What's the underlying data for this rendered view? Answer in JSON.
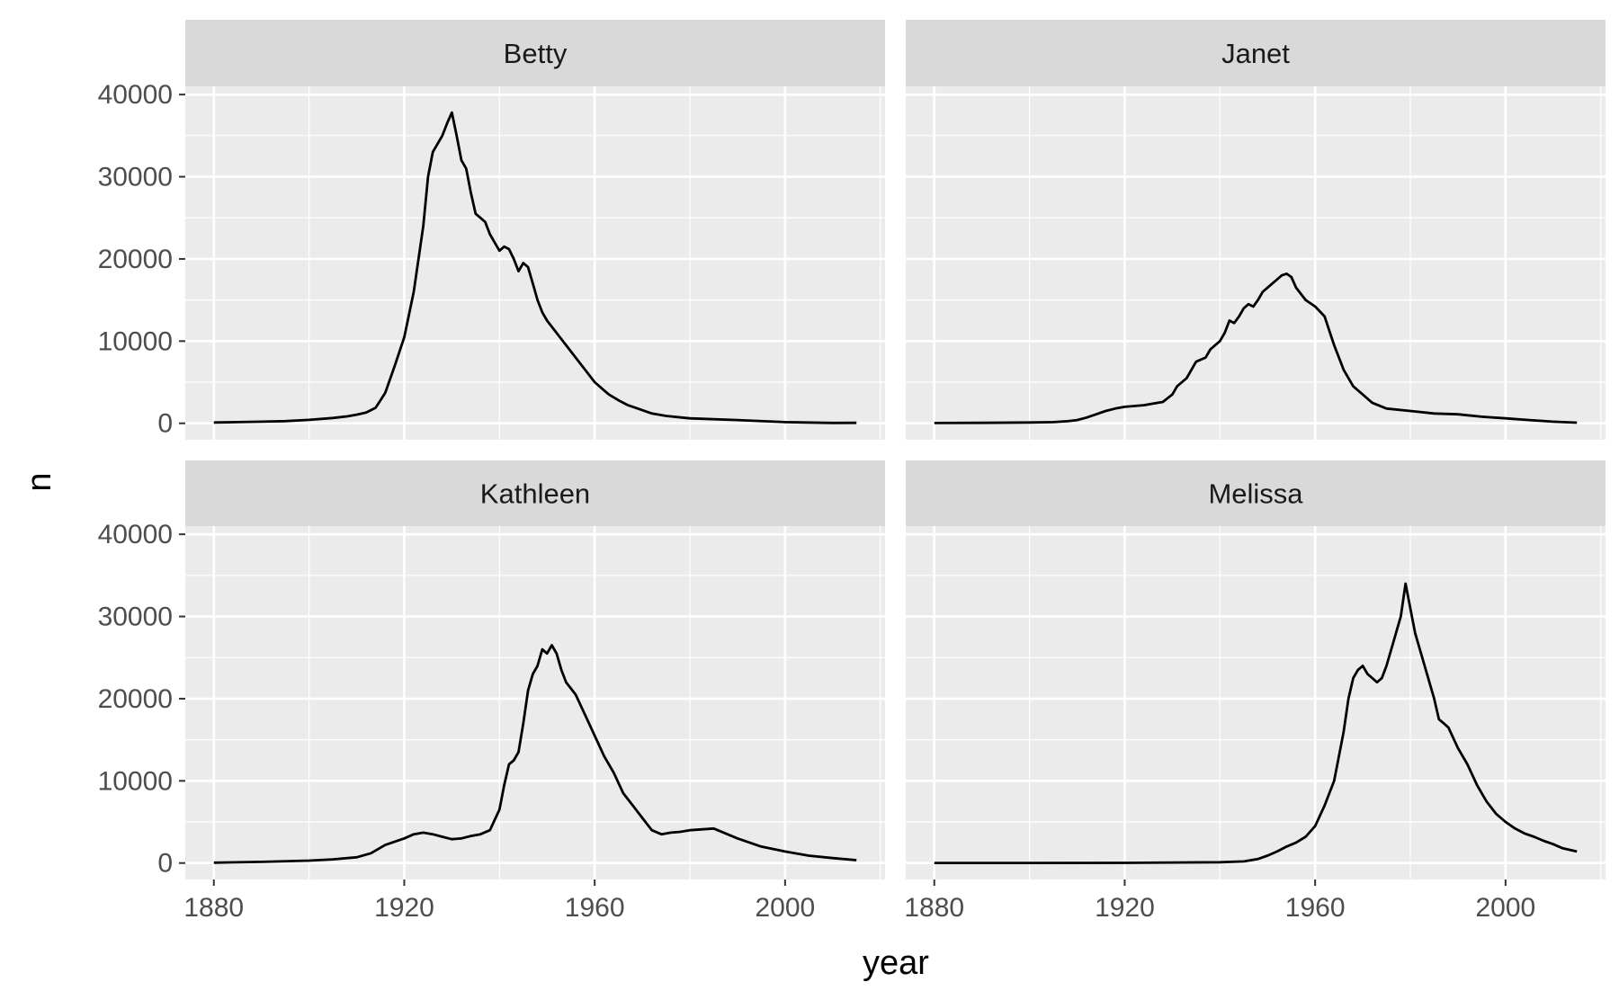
{
  "chart_data": {
    "type": "line",
    "layout": "facet_wrap",
    "title": "",
    "xlabel": "year",
    "ylabel": "n",
    "xlim": [
      1874,
      2021
    ],
    "ylim": [
      -2000,
      40000
    ],
    "x_ticks": [
      1880,
      1920,
      1960,
      2000
    ],
    "y_ticks": [
      0,
      10000,
      20000,
      30000,
      40000
    ],
    "x_tick_labels": [
      "1880",
      "1920",
      "1960",
      "2000"
    ],
    "y_tick_labels": [
      "0",
      "10000",
      "20000",
      "30000",
      "40000"
    ],
    "grid": true,
    "legend": "none",
    "line_color": "#000000",
    "panel_background": "#ebebeb",
    "strip_background": "#d9d9d9",
    "panels": [
      {
        "name": "Betty",
        "x": [
          1880,
          1885,
          1890,
          1895,
          1900,
          1905,
          1908,
          1910,
          1912,
          1914,
          1916,
          1918,
          1920,
          1922,
          1924,
          1925,
          1926,
          1928,
          1929,
          1930,
          1931,
          1932,
          1933,
          1934,
          1935,
          1936,
          1937,
          1938,
          1939,
          1940,
          1941,
          1942,
          1943,
          1944,
          1945,
          1946,
          1947,
          1948,
          1949,
          1950,
          1952,
          1954,
          1956,
          1958,
          1960,
          1962,
          1963,
          1965,
          1967,
          1970,
          1972,
          1975,
          1980,
          1990,
          2000,
          2010,
          2015
        ],
        "y": [
          100,
          150,
          200,
          260,
          420,
          650,
          850,
          1050,
          1300,
          1900,
          3700,
          7000,
          10500,
          16000,
          24000,
          30000,
          33000,
          35000,
          36500,
          37800,
          35000,
          32000,
          31000,
          28000,
          25500,
          25000,
          24500,
          23000,
          22000,
          21000,
          21500,
          21200,
          20000,
          18500,
          19500,
          19000,
          17000,
          15000,
          13500,
          12500,
          11000,
          9500,
          8000,
          6500,
          5000,
          4000,
          3500,
          2800,
          2200,
          1600,
          1200,
          900,
          600,
          400,
          150,
          50,
          60
        ]
      },
      {
        "name": "Janet",
        "x": [
          1880,
          1890,
          1900,
          1905,
          1908,
          1910,
          1912,
          1914,
          1916,
          1918,
          1920,
          1922,
          1924,
          1926,
          1928,
          1930,
          1931,
          1933,
          1934,
          1935,
          1937,
          1938,
          1940,
          1941,
          1942,
          1943,
          1944,
          1945,
          1946,
          1947,
          1948,
          1949,
          1950,
          1951,
          1952,
          1953,
          1954,
          1955,
          1956,
          1958,
          1960,
          1962,
          1964,
          1966,
          1968,
          1970,
          1972,
          1975,
          1980,
          1985,
          1990,
          1995,
          2000,
          2005,
          2010,
          2015
        ],
        "y": [
          30,
          60,
          100,
          150,
          250,
          400,
          700,
          1100,
          1500,
          1800,
          2000,
          2100,
          2200,
          2400,
          2600,
          3500,
          4500,
          5500,
          6500,
          7500,
          8000,
          9000,
          10000,
          11000,
          12500,
          12200,
          13000,
          14000,
          14500,
          14200,
          15000,
          16000,
          16500,
          17000,
          17500,
          18000,
          18200,
          17800,
          16500,
          15000,
          14200,
          13000,
          9500,
          6500,
          4500,
          3500,
          2500,
          1800,
          1500,
          1200,
          1100,
          800,
          600,
          400,
          200,
          80
        ]
      },
      {
        "name": "Kathleen",
        "x": [
          1880,
          1890,
          1900,
          1905,
          1910,
          1913,
          1916,
          1920,
          1922,
          1924,
          1926,
          1928,
          1930,
          1932,
          1934,
          1936,
          1938,
          1940,
          1941,
          1942,
          1943,
          1944,
          1945,
          1946,
          1947,
          1948,
          1949,
          1950,
          1951,
          1952,
          1953,
          1954,
          1956,
          1958,
          1960,
          1962,
          1964,
          1966,
          1968,
          1970,
          1972,
          1974,
          1976,
          1978,
          1980,
          1985,
          1990,
          1995,
          2000,
          2005,
          2010,
          2015
        ],
        "y": [
          50,
          150,
          300,
          450,
          700,
          1200,
          2200,
          3000,
          3500,
          3700,
          3500,
          3200,
          2900,
          3000,
          3300,
          3500,
          4000,
          6500,
          9500,
          12000,
          12500,
          13500,
          17000,
          21000,
          23000,
          24000,
          26000,
          25500,
          26500,
          25500,
          23500,
          22000,
          20500,
          18000,
          15500,
          13000,
          11000,
          8500,
          7000,
          5500,
          4000,
          3500,
          3700,
          3800,
          4000,
          4200,
          3000,
          2000,
          1400,
          900,
          600,
          350
        ]
      },
      {
        "name": "Melissa",
        "x": [
          1880,
          1900,
          1920,
          1940,
          1945,
          1948,
          1950,
          1952,
          1954,
          1956,
          1958,
          1960,
          1962,
          1964,
          1966,
          1967,
          1968,
          1969,
          1970,
          1971,
          1972,
          1973,
          1974,
          1975,
          1976,
          1977,
          1978,
          1979,
          1980,
          1981,
          1982,
          1983,
          1984,
          1985,
          1986,
          1987,
          1988,
          1990,
          1992,
          1994,
          1996,
          1998,
          2000,
          2002,
          2004,
          2006,
          2008,
          2010,
          2012,
          2015
        ],
        "y": [
          10,
          10,
          20,
          100,
          200,
          500,
          900,
          1400,
          2000,
          2500,
          3200,
          4500,
          7000,
          10000,
          16000,
          20000,
          22500,
          23500,
          24000,
          23000,
          22500,
          22000,
          22500,
          24000,
          26000,
          28000,
          30000,
          34000,
          31000,
          28000,
          26000,
          24000,
          22000,
          20000,
          17500,
          17000,
          16500,
          14000,
          12000,
          9500,
          7500,
          6000,
          5000,
          4200,
          3600,
          3200,
          2700,
          2300,
          1800,
          1400
        ]
      }
    ]
  }
}
